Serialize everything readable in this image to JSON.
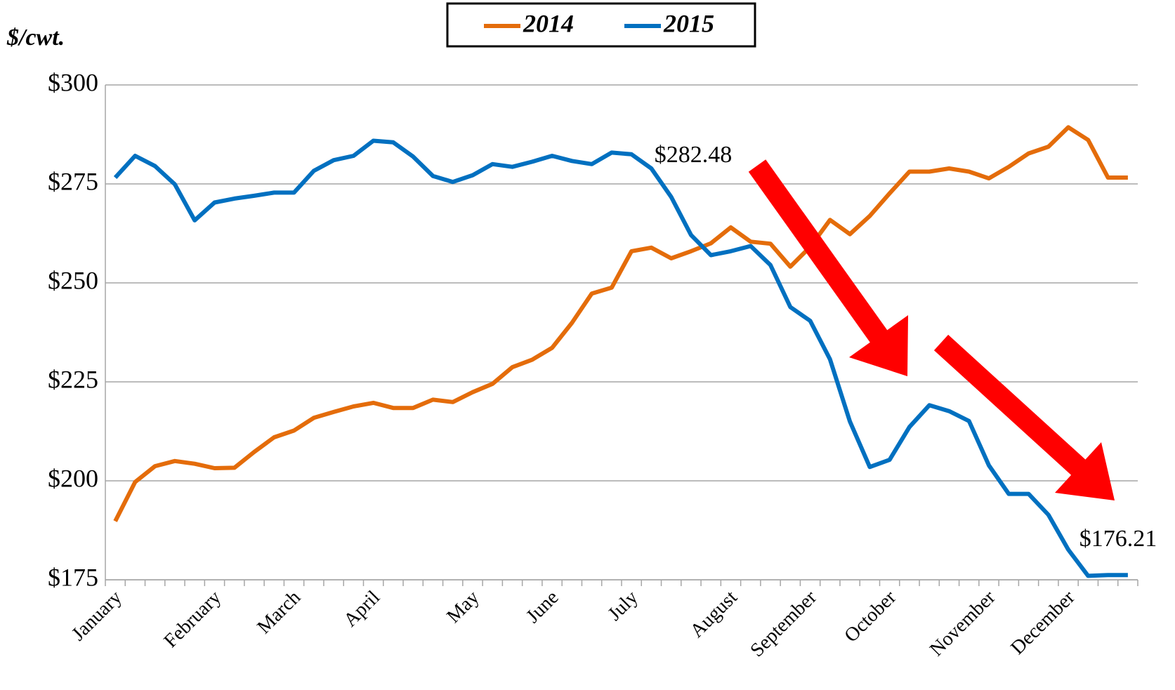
{
  "chart_data": {
    "type": "line",
    "y_label": "$/cwt.",
    "categories": [
      "January",
      null,
      null,
      null,
      null,
      "February",
      null,
      null,
      null,
      "March",
      null,
      null,
      null,
      "April",
      null,
      null,
      null,
      null,
      "May",
      null,
      null,
      null,
      "June",
      null,
      null,
      null,
      "July",
      null,
      null,
      null,
      null,
      "August",
      null,
      null,
      null,
      "September",
      null,
      null,
      null,
      "October",
      null,
      null,
      null,
      null,
      "November",
      null,
      null,
      null,
      "December",
      null,
      null,
      null
    ],
    "series": [
      {
        "name": "2014",
        "color": "#e46c0a",
        "values": [
          189.8,
          199.7,
          203.7,
          205.0,
          204.3,
          203.2,
          203.3,
          207.3,
          211.0,
          212.7,
          215.9,
          217.4,
          218.8,
          219.7,
          218.4,
          218.4,
          220.5,
          219.9,
          222.4,
          224.5,
          228.7,
          230.6,
          233.6,
          239.9,
          247.3,
          248.8,
          258.0,
          258.9,
          256.2,
          258.0,
          260.0,
          264.0,
          260.4,
          259.9,
          254.1,
          259.1,
          265.9,
          262.3,
          266.9,
          272.6,
          278.1,
          278.1,
          278.9,
          278.1,
          276.4,
          279.3,
          282.7,
          284.4,
          289.3,
          286.1,
          276.6,
          276.6
        ]
      },
      {
        "name": "2015",
        "color": "#0070c0",
        "values": [
          276.6,
          282.1,
          279.5,
          274.9,
          265.8,
          270.3,
          271.3,
          272.0,
          272.8,
          272.8,
          278.3,
          281.0,
          282.1,
          285.9,
          285.5,
          281.9,
          277.0,
          275.5,
          277.2,
          280.0,
          279.3,
          280.6,
          282.1,
          280.8,
          280.0,
          282.9,
          282.48,
          278.9,
          271.7,
          262.1,
          257.0,
          258.0,
          259.3,
          254.5,
          243.9,
          240.4,
          230.7,
          215.0,
          203.5,
          205.3,
          213.6,
          219.1,
          217.6,
          215.1,
          203.9,
          196.7,
          196.7,
          191.4,
          182.6,
          176.0,
          176.21,
          176.21
        ]
      }
    ],
    "ylim": [
      175,
      300
    ],
    "yticks": [
      {
        "value": 175,
        "label": "$175"
      },
      {
        "value": 200,
        "label": "$200"
      },
      {
        "value": 225,
        "label": "$225"
      },
      {
        "value": 250,
        "label": "$250"
      },
      {
        "value": 275,
        "label": "$275"
      },
      {
        "value": 300,
        "label": "$300"
      }
    ],
    "grid": true,
    "legend": "top",
    "annotations": [
      "$282.48",
      "$176.21"
    ]
  }
}
